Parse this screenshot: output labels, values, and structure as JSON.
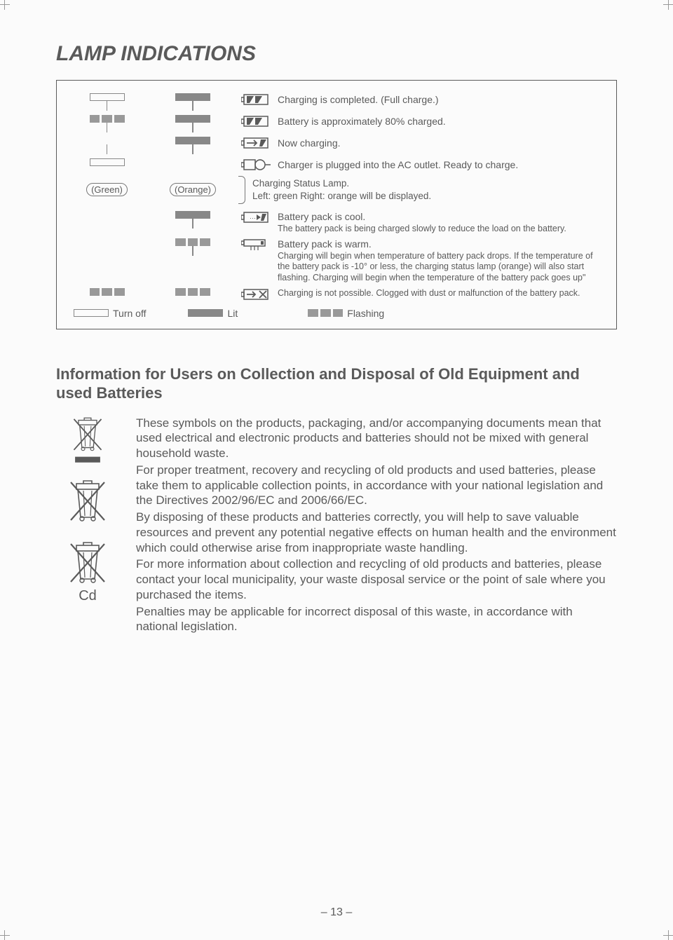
{
  "colors": {
    "text": "#5a5a5a",
    "line": "#888888",
    "bg": "#fbfbfb"
  },
  "title": "LAMP INDICATIONS",
  "lamp_rows": [
    {
      "left": "off",
      "mid": "lit",
      "icon": "full",
      "text": "Charging is completed. (Full charge.)"
    },
    {
      "left": "flash",
      "mid": "lit",
      "icon": "full",
      "text": "Battery is approximately 80% charged."
    },
    {
      "left": "",
      "mid": "lit",
      "icon": "arrow",
      "text": "Now charging."
    },
    {
      "left": "off",
      "mid": "",
      "icon": "plug",
      "text": "Charger is plugged into the AC outlet. Ready to charge."
    }
  ],
  "label_green": "(Green)",
  "label_orange": "(Orange)",
  "status_lamp_line1": "Charging Status Lamp.",
  "status_lamp_line2": "Left: green  Right: orange will be displayed.",
  "lamp_rows2": [
    {
      "left": "",
      "mid": "lit",
      "icon": "cool",
      "title": "Battery pack is cool.",
      "text": "The battery pack is being charged slowly to reduce the load on the battery."
    },
    {
      "left": "",
      "mid": "flash",
      "icon": "warm",
      "title": "Battery pack is warm.",
      "text": "Charging will begin when temperature of battery pack drops. If the temperature of the battery pack is -10° or less, the charging status lamp (orange) will also start flashing. Charging will begin when the temperature of the battery pack goes up\""
    },
    {
      "left": "flash",
      "mid": "flash",
      "icon": "x",
      "title": "",
      "text": "Charging is not possible. Clogged with dust or malfunction of the battery pack."
    }
  ],
  "legend": {
    "off": "Turn off",
    "lit": "Lit",
    "flash": "Flashing"
  },
  "section2_title": "Information for Users on Collection and Disposal of Old Equipment and used Batteries",
  "info_paragraphs": [
    "These symbols on the products, packaging, and/or accompanying documents mean that used electrical and electronic products and batteries should not be mixed with general household waste.",
    "For proper treatment, recovery and recycling of old products and used batteries, please take them to applicable collection points, in accordance with your national legislation and the Directives 2002/96/EC and 2006/66/EC.",
    "By disposing of these products and batteries correctly, you will help to save valuable resources and prevent any potential negative effects on human health and the environment which could otherwise arise from inappropriate waste handling.",
    "For more information about collection and recycling of old products and batteries, please contact your local municipality, your waste disposal service or the point of sale where you purchased the items.",
    "Penalties may be applicable for incorrect disposal of this waste, in accordance with national legislation."
  ],
  "cd_label": "Cd",
  "page_number": "– 13 –"
}
